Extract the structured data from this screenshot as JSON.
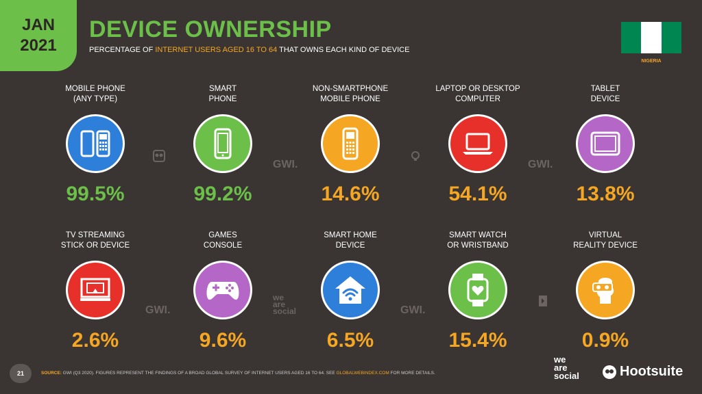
{
  "badge": {
    "month": "JAN",
    "year": "2021"
  },
  "title": "DEVICE OWNERSHIP",
  "subtitle": {
    "prefix": "PERCENTAGE OF ",
    "highlight": "INTERNET USERS AGED 16 TO 64",
    "suffix": " THAT OWNS EACH KIND OF DEVICE"
  },
  "country": "NIGERIA",
  "devices": [
    {
      "label": "MOBILE PHONE\n(ANY TYPE)",
      "value": "99.5%",
      "color": "#2d7fd9",
      "value_color": "#6cc04a",
      "icon": "mobile-phones-icon"
    },
    {
      "label": "SMART\nPHONE",
      "value": "99.2%",
      "color": "#6cc04a",
      "value_color": "#6cc04a",
      "icon": "smartphone-icon"
    },
    {
      "label": "NON-SMARTPHONE\nMOBILE PHONE",
      "value": "14.6%",
      "color": "#f5a623",
      "value_color": "#f5a623",
      "icon": "feature-phone-icon"
    },
    {
      "label": "LAPTOP OR DESKTOP\nCOMPUTER",
      "value": "54.1%",
      "color": "#e8302a",
      "value_color": "#f5a623",
      "icon": "laptop-icon"
    },
    {
      "label": "TABLET\nDEVICE",
      "value": "13.8%",
      "color": "#b567c7",
      "value_color": "#f5a623",
      "icon": "tablet-icon"
    },
    {
      "label": "TV STREAMING\nSTICK OR DEVICE",
      "value": "2.6%",
      "color": "#e8302a",
      "value_color": "#f5a623",
      "icon": "tv-streaming-icon"
    },
    {
      "label": "GAMES\nCONSOLE",
      "value": "9.6%",
      "color": "#b567c7",
      "value_color": "#f5a623",
      "icon": "gamepad-icon"
    },
    {
      "label": "SMART HOME\nDEVICE",
      "value": "6.5%",
      "color": "#2d7fd9",
      "value_color": "#f5a623",
      "icon": "smart-home-icon"
    },
    {
      "label": "SMART WATCH\nOR WRISTBAND",
      "value": "15.4%",
      "color": "#6cc04a",
      "value_color": "#f5a623",
      "icon": "smartwatch-icon"
    },
    {
      "label": "VIRTUAL\nREALITY DEVICE",
      "value": "0.9%",
      "color": "#f5a623",
      "value_color": "#f5a623",
      "icon": "vr-headset-icon"
    }
  ],
  "watermarks": {
    "gwi": "GWI.",
    "was": "we\nare\nsocial"
  },
  "footer": {
    "page": "21",
    "source_label": "SOURCE:",
    "source_text": " GWI (Q3 2020). FIGURES REPRESENT THE FINDINGS OF A BROAD GLOBAL SURVEY OF INTERNET USERS AGED 16 TO 64. SEE ",
    "source_link": "GLOBALWEBINDEX.COM",
    "source_end": " FOR MORE DETAILS.",
    "was_logo": "we\nare\nsocial",
    "hootsuite": "Hootsuite"
  }
}
